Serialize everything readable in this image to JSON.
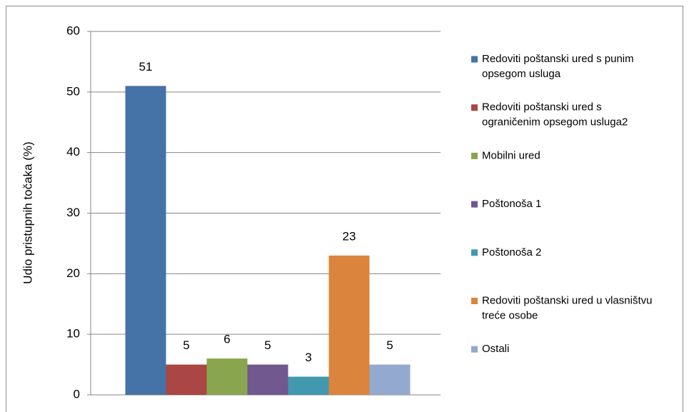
{
  "chart_data": {
    "type": "bar",
    "y_label": "Udio pristupnih točaka (%)",
    "categories": [
      null
    ],
    "ylim": [
      0,
      60
    ],
    "yticks": [
      0,
      10,
      20,
      30,
      40,
      50,
      60
    ],
    "grid": true,
    "legend": "right",
    "series": [
      {
        "name": "Redoviti poštanski ured s punim opsegom usluga",
        "color": "#4572a7",
        "values": [
          51
        ]
      },
      {
        "name": "Redoviti poštanski ured s ograničenim opsegom usluga2",
        "color": "#aa4643",
        "values": [
          5
        ]
      },
      {
        "name": "Mobilni ured",
        "color": "#89a54e",
        "values": [
          6
        ]
      },
      {
        "name": "Poštonoša 1",
        "color": "#71588f",
        "values": [
          5
        ]
      },
      {
        "name": "Poštonoša 2",
        "color": "#4198af",
        "values": [
          3
        ]
      },
      {
        "name": "Redoviti poštanski ured u vlasništvu treće osobe",
        "color": "#db843d",
        "values": [
          23
        ]
      },
      {
        "name": "Ostali",
        "color": "#93a9cf",
        "values": [
          5
        ]
      }
    ]
  }
}
